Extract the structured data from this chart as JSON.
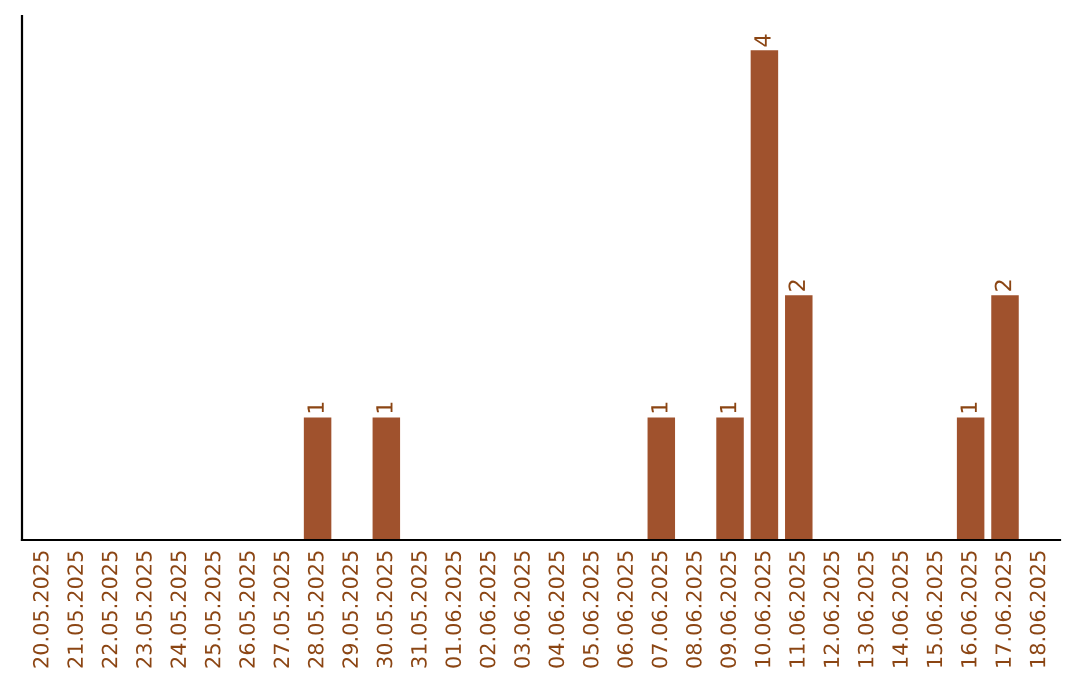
{
  "chart_data": {
    "type": "bar",
    "categories": [
      "20.05.2025",
      "21.05.2025",
      "22.05.2025",
      "23.05.2025",
      "24.05.2025",
      "25.05.2025",
      "26.05.2025",
      "27.05.2025",
      "28.05.2025",
      "29.05.2025",
      "30.05.2025",
      "31.05.2025",
      "01.06.2025",
      "02.06.2025",
      "03.06.2025",
      "04.06.2025",
      "05.06.2025",
      "06.06.2025",
      "07.06.2025",
      "08.06.2025",
      "09.06.2025",
      "10.06.2025",
      "11.06.2025",
      "12.06.2025",
      "13.06.2025",
      "14.06.2025",
      "15.06.2025",
      "16.06.2025",
      "17.06.2025",
      "18.06.2025"
    ],
    "values": [
      0,
      0,
      0,
      0,
      0,
      0,
      0,
      0,
      1,
      0,
      1,
      0,
      0,
      0,
      0,
      0,
      0,
      0,
      1,
      0,
      1,
      4,
      2,
      0,
      0,
      0,
      0,
      1,
      2,
      0
    ],
    "value_labels": [
      null,
      null,
      null,
      null,
      null,
      null,
      null,
      null,
      "1",
      null,
      "1",
      null,
      null,
      null,
      null,
      null,
      null,
      null,
      "1",
      null,
      "1",
      "4",
      "2",
      null,
      null,
      null,
      null,
      "1",
      "2",
      null
    ],
    "color": "#a0522d",
    "tick_labels": "x",
    "grid": false,
    "legend": false
  }
}
